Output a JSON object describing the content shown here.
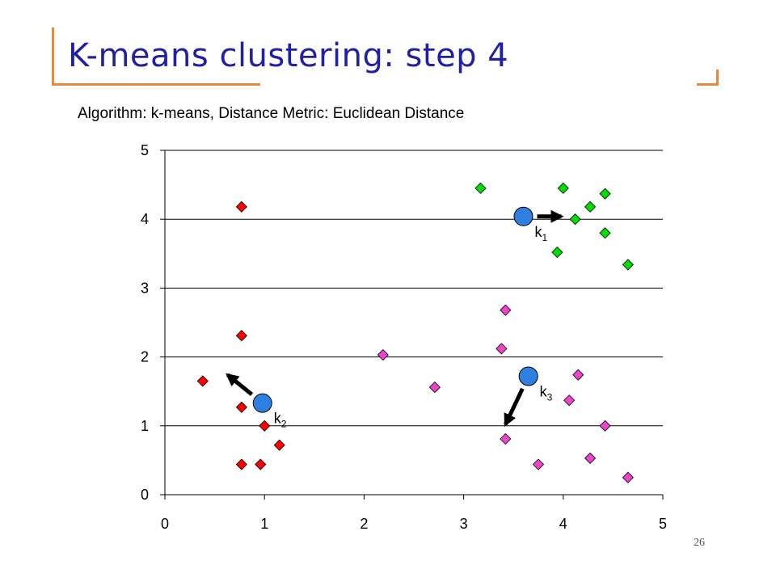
{
  "slide": {
    "title": "K-means clustering: step 4",
    "subtitle": "Algorithm: k-means, Distance Metric: Euclidean Distance",
    "page_number": "26",
    "accent_color": "#e8893a",
    "title_color": "#1f1fa8"
  },
  "chart_data": {
    "type": "scatter",
    "xlim": [
      0,
      5
    ],
    "ylim": [
      0,
      5
    ],
    "x_ticks": [
      "0",
      "1",
      "2",
      "3",
      "4",
      "5"
    ],
    "y_ticks": [
      "0",
      "1",
      "2",
      "3",
      "4",
      "5"
    ],
    "gridlines": "horizontal",
    "xlabel": "",
    "ylabel": "",
    "series": [
      {
        "color": "#ff0000",
        "marker": "diamond",
        "points": [
          [
            0.77,
            4.18
          ],
          [
            0.77,
            2.31
          ],
          [
            0.38,
            1.65
          ],
          [
            0.77,
            1.27
          ],
          [
            1.0,
            1.0
          ],
          [
            1.15,
            0.72
          ],
          [
            0.77,
            0.44
          ],
          [
            0.96,
            0.44
          ]
        ]
      },
      {
        "color": "#00dd00",
        "marker": "diamond",
        "points": [
          [
            3.17,
            4.45
          ],
          [
            4.0,
            4.45
          ],
          [
            4.42,
            4.37
          ],
          [
            4.27,
            4.18
          ],
          [
            4.12,
            4.0
          ],
          [
            4.42,
            3.8
          ],
          [
            3.94,
            3.52
          ],
          [
            4.65,
            3.34
          ]
        ]
      },
      {
        "color": "#ee44cc",
        "marker": "diamond",
        "points": [
          [
            3.42,
            2.68
          ],
          [
            2.19,
            2.03
          ],
          [
            3.38,
            2.12
          ],
          [
            2.71,
            1.56
          ],
          [
            4.15,
            1.74
          ],
          [
            4.06,
            1.37
          ],
          [
            4.42,
            1.0
          ],
          [
            3.42,
            0.81
          ],
          [
            3.75,
            0.44
          ],
          [
            4.27,
            0.53
          ],
          [
            4.65,
            0.25
          ]
        ]
      }
    ],
    "centroids": [
      {
        "name": "k",
        "sub": "1",
        "x": 3.6,
        "y": 4.04,
        "arrow_to": [
          3.98,
          4.04
        ]
      },
      {
        "name": "k",
        "sub": "2",
        "x": 0.98,
        "y": 1.33,
        "arrow_to": [
          0.63,
          1.74
        ]
      },
      {
        "name": "k",
        "sub": "3",
        "x": 3.65,
        "y": 1.72,
        "arrow_to": [
          3.42,
          1.02
        ]
      }
    ],
    "centroid_color": "#2f7fe0"
  }
}
